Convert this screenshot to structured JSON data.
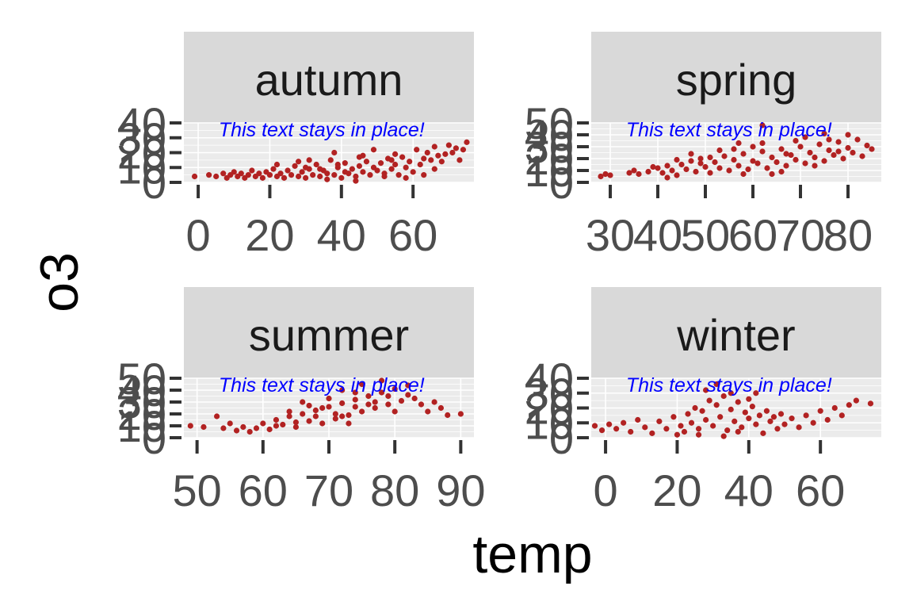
{
  "chart_data": {
    "type": "scatter",
    "xlabel": "temp",
    "ylabel": "o3",
    "annotation": "This text stays in place!",
    "colors": {
      "point": "#b22222",
      "strip": "#d9d9d9",
      "panel": "#ebebeb",
      "grid": "#ffffff",
      "annotation": "#0000ff",
      "tick": "#333333",
      "tick_label": "#4d4d4d"
    },
    "facets": [
      {
        "label": "autumn",
        "xlim": [
          -4,
          77
        ],
        "ylim": [
          0,
          40
        ],
        "x_ticks": [
          0,
          20,
          40,
          60
        ],
        "y_ticks": [
          0,
          10,
          20,
          30,
          40
        ],
        "points": [
          [
            -1,
            4
          ],
          [
            3,
            5
          ],
          [
            5,
            4
          ],
          [
            7,
            6
          ],
          [
            8,
            3
          ],
          [
            9,
            5
          ],
          [
            10,
            7
          ],
          [
            11,
            4
          ],
          [
            12,
            6
          ],
          [
            13,
            3
          ],
          [
            14,
            5
          ],
          [
            15,
            8
          ],
          [
            16,
            4
          ],
          [
            17,
            6
          ],
          [
            18,
            3
          ],
          [
            19,
            7
          ],
          [
            20,
            5
          ],
          [
            21,
            9
          ],
          [
            22,
            4
          ],
          [
            23,
            6
          ],
          [
            24,
            3
          ],
          [
            25,
            8
          ],
          [
            26,
            5
          ],
          [
            27,
            11
          ],
          [
            28,
            4
          ],
          [
            29,
            7
          ],
          [
            30,
            3
          ],
          [
            31,
            9
          ],
          [
            32,
            5
          ],
          [
            33,
            12
          ],
          [
            34,
            4
          ],
          [
            35,
            8
          ],
          [
            36,
            6
          ],
          [
            37,
            15
          ],
          [
            38,
            5
          ],
          [
            39,
            10
          ],
          [
            40,
            3
          ],
          [
            41,
            13
          ],
          [
            42,
            6
          ],
          [
            43,
            9
          ],
          [
            44,
            4
          ],
          [
            45,
            11
          ],
          [
            46,
            7
          ],
          [
            47,
            14
          ],
          [
            48,
            5
          ],
          [
            49,
            10
          ],
          [
            50,
            8
          ],
          [
            51,
            13
          ],
          [
            52,
            6
          ],
          [
            53,
            16
          ],
          [
            54,
            9
          ],
          [
            55,
            12
          ],
          [
            56,
            5
          ],
          [
            57,
            17
          ],
          [
            58,
            10
          ],
          [
            59,
            14
          ],
          [
            60,
            7
          ],
          [
            61,
            22
          ],
          [
            62,
            12
          ],
          [
            63,
            16
          ],
          [
            64,
            20
          ],
          [
            65,
            15
          ],
          [
            66,
            24
          ],
          [
            67,
            18
          ],
          [
            68,
            14
          ],
          [
            70,
            25
          ],
          [
            71,
            20
          ],
          [
            72,
            23
          ],
          [
            73,
            15
          ],
          [
            74,
            22
          ],
          [
            75,
            27
          ],
          [
            38,
            20
          ],
          [
            46,
            18
          ],
          [
            28,
            14
          ],
          [
            36,
            2
          ],
          [
            44,
            1
          ],
          [
            52,
            4
          ],
          [
            31,
            15
          ],
          [
            41,
            7
          ],
          [
            55,
            19
          ],
          [
            66,
            9
          ],
          [
            22,
            12
          ],
          [
            49,
            22
          ],
          [
            58,
            3
          ],
          [
            34,
            9
          ],
          [
            63,
            5
          ],
          [
            45,
            17
          ],
          [
            39,
            12
          ],
          [
            30,
            10
          ],
          [
            54,
            15
          ],
          [
            69,
            19
          ]
        ]
      },
      {
        "label": "spring",
        "xlim": [
          26,
          87
        ],
        "ylim": [
          0,
          50
        ],
        "x_ticks": [
          30,
          40,
          50,
          60,
          70,
          80
        ],
        "y_ticks": [
          0,
          10,
          20,
          30,
          40,
          50
        ],
        "points": [
          [
            28,
            5
          ],
          [
            29,
            7
          ],
          [
            30,
            6
          ],
          [
            34,
            8
          ],
          [
            35,
            10
          ],
          [
            36,
            7
          ],
          [
            38,
            9
          ],
          [
            40,
            12
          ],
          [
            41,
            8
          ],
          [
            42,
            14
          ],
          [
            43,
            10
          ],
          [
            44,
            6
          ],
          [
            45,
            15
          ],
          [
            46,
            11
          ],
          [
            47,
            18
          ],
          [
            48,
            9
          ],
          [
            49,
            20
          ],
          [
            50,
            13
          ],
          [
            51,
            8
          ],
          [
            52,
            17
          ],
          [
            53,
            12
          ],
          [
            54,
            22
          ],
          [
            55,
            10
          ],
          [
            56,
            19
          ],
          [
            57,
            14
          ],
          [
            58,
            24
          ],
          [
            59,
            11
          ],
          [
            60,
            18
          ],
          [
            61,
            16
          ],
          [
            62,
            26
          ],
          [
            63,
            12
          ],
          [
            64,
            21
          ],
          [
            65,
            17
          ],
          [
            66,
            28
          ],
          [
            67,
            14
          ],
          [
            68,
            23
          ],
          [
            69,
            19
          ],
          [
            70,
            30
          ],
          [
            71,
            16
          ],
          [
            72,
            25
          ],
          [
            73,
            21
          ],
          [
            74,
            32
          ],
          [
            75,
            18
          ],
          [
            76,
            27
          ],
          [
            77,
            23
          ],
          [
            78,
            34
          ],
          [
            79,
            20
          ],
          [
            80,
            29
          ],
          [
            81,
            25
          ],
          [
            82,
            36
          ],
          [
            83,
            22
          ],
          [
            84,
            31
          ],
          [
            56,
            28
          ],
          [
            62,
            33
          ],
          [
            47,
            24
          ],
          [
            66,
            9
          ],
          [
            71,
            38
          ],
          [
            58,
            7
          ],
          [
            53,
            27
          ],
          [
            75,
            41
          ],
          [
            78,
            26
          ],
          [
            44,
            19
          ],
          [
            60,
            30
          ],
          [
            69,
            35
          ],
          [
            64,
            7
          ],
          [
            51,
            21
          ],
          [
            73,
            14
          ],
          [
            80,
            40
          ],
          [
            57,
            33
          ],
          [
            49,
            16
          ],
          [
            67,
            24
          ],
          [
            76,
            36
          ],
          [
            42,
            4
          ],
          [
            39,
            13
          ],
          [
            62,
            48
          ],
          [
            85,
            28
          ]
        ]
      },
      {
        "label": "summer",
        "xlim": [
          48,
          92
        ],
        "ylim": [
          0,
          50
        ],
        "x_ticks": [
          50,
          60,
          70,
          80,
          90
        ],
        "y_ticks": [
          0,
          10,
          20,
          30,
          40,
          50
        ],
        "points": [
          [
            49,
            10
          ],
          [
            51,
            9
          ],
          [
            53,
            18
          ],
          [
            54,
            8
          ],
          [
            55,
            12
          ],
          [
            56,
            6
          ],
          [
            57,
            9
          ],
          [
            58,
            5
          ],
          [
            59,
            8
          ],
          [
            60,
            12
          ],
          [
            61,
            7
          ],
          [
            62,
            15
          ],
          [
            63,
            11
          ],
          [
            64,
            18
          ],
          [
            65,
            9
          ],
          [
            66,
            20
          ],
          [
            67,
            14
          ],
          [
            68,
            23
          ],
          [
            69,
            12
          ],
          [
            70,
            26
          ],
          [
            71,
            16
          ],
          [
            72,
            29
          ],
          [
            73,
            19
          ],
          [
            74,
            32
          ],
          [
            75,
            22
          ],
          [
            76,
            35
          ],
          [
            77,
            25
          ],
          [
            78,
            38
          ],
          [
            79,
            28
          ],
          [
            80,
            41
          ],
          [
            81,
            31
          ],
          [
            82,
            36
          ],
          [
            83,
            33
          ],
          [
            84,
            28
          ],
          [
            85,
            22
          ],
          [
            86,
            30
          ],
          [
            87,
            25
          ],
          [
            88,
            19
          ],
          [
            90,
            20
          ],
          [
            66,
            30
          ],
          [
            72,
            40
          ],
          [
            75,
            45
          ],
          [
            78,
            48
          ],
          [
            70,
            33
          ],
          [
            68,
            18
          ],
          [
            74,
            26
          ],
          [
            77,
            30
          ],
          [
            80,
            22
          ],
          [
            73,
            12
          ],
          [
            71,
            20
          ],
          [
            69,
            25
          ],
          [
            76,
            28
          ],
          [
            65,
            13
          ],
          [
            64,
            22
          ],
          [
            62,
            10
          ],
          [
            79,
            35
          ],
          [
            82,
            44
          ],
          [
            74,
            38
          ],
          [
            72,
            18
          ],
          [
            67,
            27
          ]
        ]
      },
      {
        "label": "winter",
        "xlim": [
          -4,
          77
        ],
        "ylim": [
          0,
          40
        ],
        "x_ticks": [
          0,
          20,
          40,
          60
        ],
        "y_ticks": [
          0,
          10,
          20,
          30,
          40
        ],
        "points": [
          [
            -3,
            8
          ],
          [
            -1,
            5
          ],
          [
            1,
            9
          ],
          [
            3,
            6
          ],
          [
            5,
            10
          ],
          [
            7,
            4
          ],
          [
            9,
            12
          ],
          [
            11,
            7
          ],
          [
            13,
            3
          ],
          [
            15,
            11
          ],
          [
            17,
            6
          ],
          [
            19,
            14
          ],
          [
            21,
            8
          ],
          [
            22,
            4
          ],
          [
            23,
            16
          ],
          [
            24,
            10
          ],
          [
            25,
            20
          ],
          [
            26,
            6
          ],
          [
            27,
            18
          ],
          [
            28,
            12
          ],
          [
            29,
            25
          ],
          [
            30,
            8
          ],
          [
            31,
            22
          ],
          [
            32,
            14
          ],
          [
            33,
            28
          ],
          [
            34,
            5
          ],
          [
            35,
            19
          ],
          [
            36,
            11
          ],
          [
            37,
            24
          ],
          [
            38,
            7
          ],
          [
            39,
            17
          ],
          [
            40,
            13
          ],
          [
            41,
            21
          ],
          [
            42,
            9
          ],
          [
            43,
            15
          ],
          [
            44,
            3
          ],
          [
            45,
            18
          ],
          [
            46,
            11
          ],
          [
            47,
            14
          ],
          [
            48,
            6
          ],
          [
            49,
            16
          ],
          [
            50,
            9
          ],
          [
            52,
            13
          ],
          [
            54,
            7
          ],
          [
            56,
            15
          ],
          [
            58,
            10
          ],
          [
            60,
            18
          ],
          [
            62,
            12
          ],
          [
            64,
            20
          ],
          [
            66,
            15
          ],
          [
            68,
            22
          ],
          [
            70,
            25
          ],
          [
            74,
            23
          ],
          [
            28,
            32
          ],
          [
            31,
            36
          ],
          [
            35,
            30
          ],
          [
            26,
            2
          ],
          [
            33,
            1
          ],
          [
            40,
            26
          ],
          [
            20,
            2
          ],
          [
            37,
            4
          ],
          [
            42,
            30
          ]
        ]
      }
    ]
  }
}
